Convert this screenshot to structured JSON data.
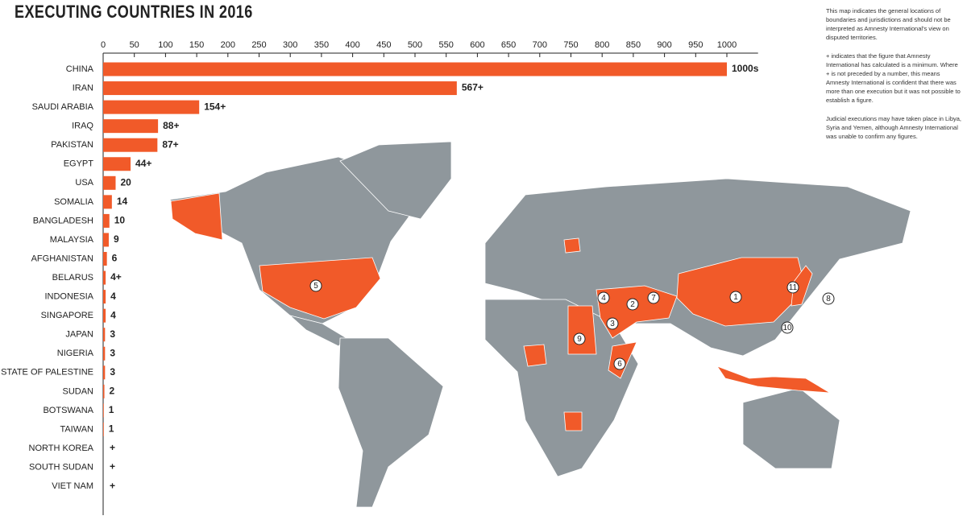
{
  "chart_data": {
    "type": "bar",
    "orientation": "horizontal",
    "title": "EXECUTING COUNTRIES IN 2016",
    "categories": [
      "CHINA",
      "IRAN",
      "SAUDI ARABIA",
      "IRAQ",
      "PAKISTAN",
      "EGYPT",
      "USA",
      "SOMALIA",
      "BANGLADESH",
      "MALAYSIA",
      "AFGHANISTAN",
      "BELARUS",
      "INDONESIA",
      "SINGAPORE",
      "JAPAN",
      "NIGERIA",
      "STATE OF PALESTINE",
      "SUDAN",
      "BOTSWANA",
      "TAIWAN",
      "NORTH KOREA",
      "SOUTH SUDAN",
      "VIET NAM"
    ],
    "values": [
      1000,
      567,
      154,
      88,
      87,
      44,
      20,
      14,
      10,
      9,
      6,
      4,
      4,
      4,
      3,
      3,
      3,
      2,
      1,
      1,
      null,
      null,
      null
    ],
    "value_labels": [
      "1000s",
      "567+",
      "154+",
      "88+",
      "87+",
      "44+",
      "20",
      "14",
      "10",
      "9",
      "6",
      "4+",
      "4",
      "4",
      "3",
      "3",
      "3",
      "2",
      "1",
      "1",
      "+",
      "+",
      "+"
    ],
    "color": "#f15a29",
    "xlim": [
      0,
      1050
    ],
    "xticks": [
      0,
      50,
      100,
      150,
      200,
      250,
      300,
      350,
      400,
      450,
      500,
      550,
      600,
      650,
      700,
      750,
      800,
      850,
      900,
      950,
      1000
    ]
  },
  "map": {
    "markers": [
      "1",
      "2",
      "3",
      "4",
      "5",
      "6",
      "7",
      "8",
      "9",
      "10",
      "11"
    ]
  },
  "notes": [
    "This map indicates the general locations of boundaries and jurisdictions and should not be interpreted as Amnesty International's view on disputed territories.",
    "+ indicates that the figure that Amnesty International has calculated is a minimum. Where + is not preceded by a number, this means Amnesty International is confident that there was more than one execution but it was not possible to establish a figure.",
    "Judicial executions may have taken place in Libya, Syria and Yemen, although Amnesty International was unable to confirm any figures."
  ]
}
